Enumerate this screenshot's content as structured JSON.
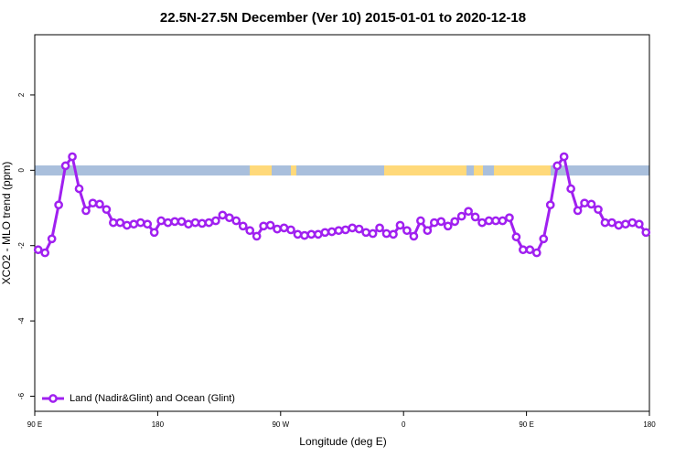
{
  "chart_data": {
    "type": "line",
    "title": "22.5N-27.5N December (Ver 10)   2015-01-01 to 2020-12-18",
    "x_label": "Longitude (deg E)",
    "y_label": "XCO2 - MLO trend (ppm)",
    "xlim": [
      90,
      540
    ],
    "ylim": [
      -6.4,
      3.6
    ],
    "xticks": [
      {
        "value": 90,
        "label": "90 E"
      },
      180,
      {
        "value": 270,
        "label": "90 W"
      },
      {
        "value": 360,
        "label": "0"
      },
      {
        "value": 450,
        "label": "90 E"
      },
      {
        "value": 540,
        "label": "180"
      }
    ],
    "yticks": [
      -6,
      -4,
      -2,
      0,
      2
    ],
    "legend": "bottom-left",
    "x": [
      92.5,
      97.5,
      102.5,
      107.5,
      112.5,
      117.5,
      122.5,
      127.5,
      132.5,
      137.5,
      142.5,
      147.5,
      152.5,
      157.5,
      162.5,
      167.5,
      172.5,
      177.5,
      182.5,
      187.5,
      192.5,
      197.5,
      202.5,
      207.5,
      212.5,
      217.5,
      222.5,
      227.5,
      232.5,
      237.5,
      242.5,
      247.5,
      252.5,
      257.5,
      262.5,
      267.5,
      272.5,
      277.5,
      282.5,
      287.5,
      292.5,
      297.5,
      302.5,
      307.5,
      312.5,
      317.5,
      322.5,
      327.5,
      332.5,
      337.5,
      342.5,
      347.5,
      352.5,
      357.5,
      362.5,
      367.5,
      372.5,
      377.5,
      382.5,
      387.5,
      392.5,
      397.5,
      402.5,
      407.5,
      412.5,
      417.5,
      422.5,
      427.5,
      432.5,
      437.5,
      442.5,
      447.5,
      452.5,
      457.5,
      462.5,
      467.5,
      472.5,
      477.5,
      482.5,
      487.5,
      492.5,
      497.5,
      502.5,
      507.5,
      512.5,
      517.5,
      522.5,
      527.5,
      532.5,
      537.5
    ],
    "series": [
      {
        "name": "Land (Nadir&Glint) and Ocean (Glint)",
        "color": "#a020f0",
        "values": [
          -2.11,
          -2.19,
          -1.82,
          -0.92,
          0.12,
          0.36,
          -0.49,
          -1.07,
          -0.87,
          -0.9,
          -1.04,
          -1.39,
          -1.39,
          -1.46,
          -1.43,
          -1.39,
          -1.43,
          -1.65,
          -1.34,
          -1.39,
          -1.36,
          -1.36,
          -1.43,
          -1.39,
          -1.41,
          -1.39,
          -1.34,
          -1.19,
          -1.26,
          -1.34,
          -1.48,
          -1.6,
          -1.75,
          -1.48,
          -1.46,
          -1.56,
          -1.53,
          -1.58,
          -1.7,
          -1.73,
          -1.7,
          -1.7,
          -1.65,
          -1.63,
          -1.6,
          -1.58,
          -1.53,
          -1.56,
          -1.65,
          -1.68,
          -1.53,
          -1.68,
          -1.7,
          -1.46,
          -1.6,
          -1.75,
          -1.34,
          -1.6,
          -1.39,
          -1.36,
          -1.48,
          -1.36,
          -1.22,
          -1.09,
          -1.24,
          -1.39,
          -1.34,
          -1.34,
          -1.34,
          -1.26,
          -1.77,
          -2.11,
          -2.11,
          -2.19,
          -1.82,
          -0.92,
          0.12,
          0.36,
          -0.49,
          -1.07,
          -0.87,
          -0.9,
          -1.04,
          -1.39,
          -1.39,
          -1.46,
          -1.43,
          -1.39,
          -1.43,
          -1.65
        ]
      }
    ]
  }
}
